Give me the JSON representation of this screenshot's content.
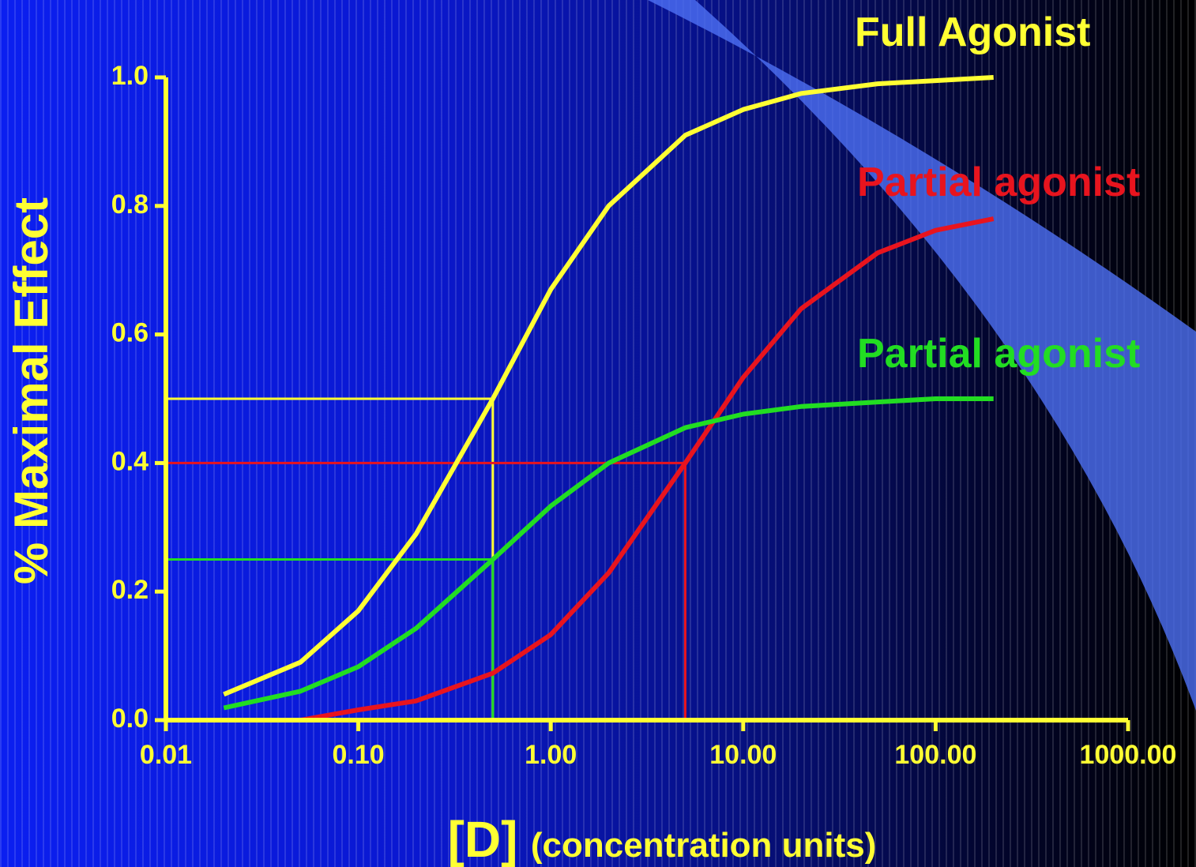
{
  "chart_data": {
    "type": "line",
    "y_label": "% Maximal Effect",
    "x_label": "[D]",
    "x_label_note": "(concentration units)",
    "x_scale": "log",
    "x": [
      0.02,
      0.05,
      0.1,
      0.2,
      0.5,
      1,
      2,
      5,
      10,
      20,
      50,
      100,
      200
    ],
    "series": [
      {
        "name": "Full Agonist",
        "color": "#ffff33",
        "values": [
          0.04,
          0.09,
          0.17,
          0.29,
          0.5,
          0.67,
          0.8,
          0.91,
          0.95,
          0.975,
          0.99,
          0.995,
          1.0
        ]
      },
      {
        "name": "Partial agonist",
        "color": "#e8141e",
        "values": [
          null,
          0,
          0.016,
          0.03,
          0.073,
          0.133,
          0.229,
          0.4,
          0.533,
          0.64,
          0.727,
          0.762,
          0.78
        ]
      },
      {
        "name": "Partial agonist",
        "color": "#22dd22",
        "values": [
          0.019,
          0.045,
          0.083,
          0.143,
          0.25,
          0.333,
          0.4,
          0.455,
          0.476,
          0.488,
          0.495,
          0.5,
          0.5
        ]
      }
    ],
    "reference_lines": [
      {
        "x": 0.5,
        "y": 0.5,
        "color": "#ffff33"
      },
      {
        "x": 5,
        "y": 0.4,
        "color": "#e8141e"
      },
      {
        "x": 0.5,
        "y": 0.25,
        "color": "#22dd22"
      }
    ],
    "xlim": [
      0.01,
      1000
    ],
    "xticks": [
      0.01,
      {
        "value": 0.1,
        "label": "0.10"
      },
      {
        "value": 1,
        "label": "1.00"
      },
      {
        "value": 10,
        "label": "10.00"
      },
      {
        "value": 100,
        "label": "100.00"
      },
      {
        "value": 1000,
        "label": "1000.00"
      }
    ],
    "ylim": [
      0,
      1
    ],
    "yticks": [
      {
        "value": 0,
        "label": "0.0"
      },
      0.2,
      0.4,
      0.6,
      0.8,
      {
        "value": 1,
        "label": "1.0"
      }
    ],
    "axis_color": "#ffff33"
  }
}
